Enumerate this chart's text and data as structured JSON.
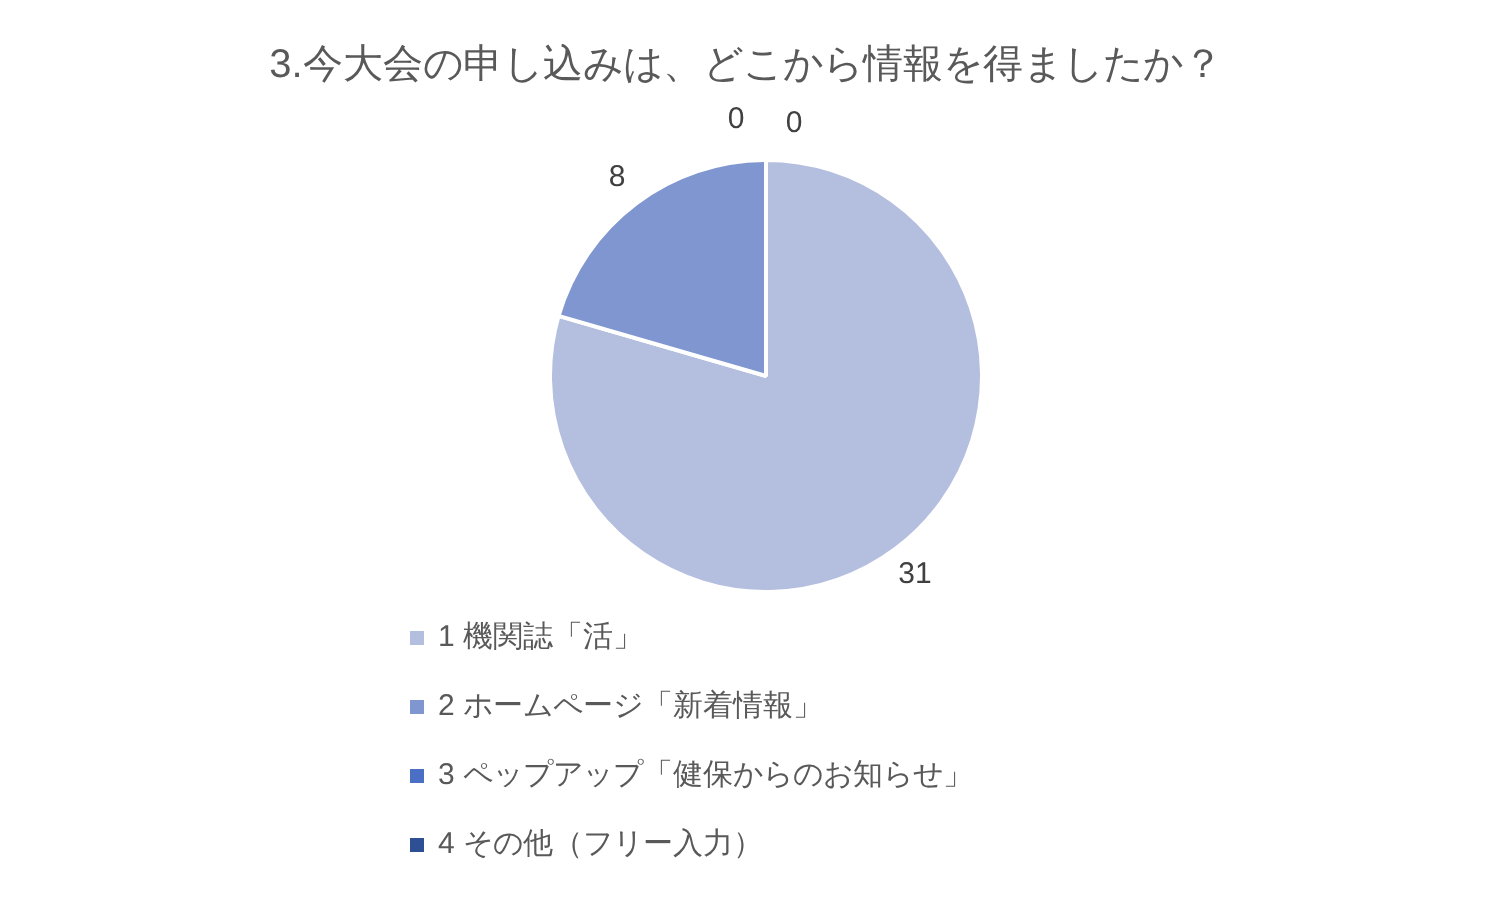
{
  "chart_data": {
    "type": "pie",
    "title": "3.今大会の申し込みは、どこから情報を得ましたか？",
    "categories": [
      "1 機関誌「活」",
      "2 ホームページ「新着情報」",
      "3 ペップアップ「健保からのお知らせ」",
      "4 その他（フリー入力）"
    ],
    "values": [
      31,
      8,
      0,
      0
    ],
    "colors": [
      "#b4bfe0",
      "#7f96d0",
      "#4a6fc4",
      "#2f4f94"
    ],
    "value_labels": [
      "31",
      "8",
      "0",
      "0"
    ],
    "legend": "bottom"
  }
}
